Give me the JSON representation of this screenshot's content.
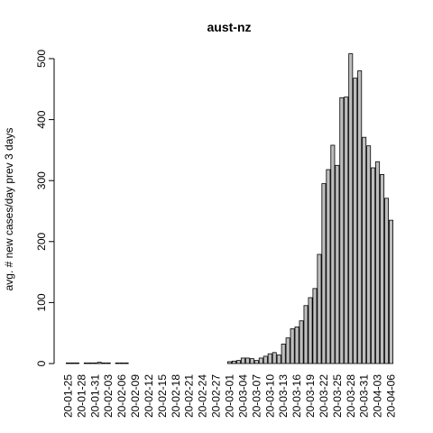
{
  "chart_data": {
    "type": "bar",
    "title": "aust-nz",
    "y_label": "avg. # new cases/day prev  3  days",
    "categories": [
      "20-01-25",
      null,
      null,
      "20-01-28",
      null,
      null,
      "20-01-31",
      null,
      null,
      "20-02-03",
      null,
      null,
      "20-02-06",
      null,
      null,
      "20-02-09",
      null,
      null,
      "20-02-12",
      null,
      null,
      "20-02-15",
      null,
      null,
      "20-02-18",
      null,
      null,
      "20-02-21",
      null,
      null,
      "20-02-24",
      null,
      null,
      "20-02-27",
      null,
      null,
      "20-03-01",
      null,
      null,
      "20-03-04",
      null,
      null,
      "20-03-07",
      null,
      null,
      "20-03-10",
      null,
      null,
      "20-03-13",
      null,
      null,
      "20-03-16",
      null,
      null,
      "20-03-19",
      null,
      null,
      "20-03-22",
      null,
      null,
      "20-03-25",
      null,
      null,
      "20-03-28",
      null,
      null,
      "20-03-31",
      null,
      null,
      "20-04-03",
      null,
      null,
      "20-04-06"
    ],
    "values": [
      1,
      1,
      1,
      0,
      1,
      1,
      1,
      2,
      1,
      1,
      0,
      1,
      1,
      1,
      0,
      0,
      0,
      0,
      0,
      0,
      0,
      0,
      0,
      0,
      0,
      0,
      0,
      0,
      0,
      0,
      0,
      0,
      0,
      0,
      0,
      0,
      3,
      4,
      5,
      9,
      9,
      8,
      5,
      9,
      12,
      16,
      18,
      14,
      32,
      42,
      57,
      60,
      70,
      95,
      108,
      123,
      179,
      295,
      318,
      358,
      325,
      436,
      437,
      508,
      468,
      480,
      371,
      357,
      321,
      331,
      310,
      271,
      235
    ],
    "color": "#bebebe",
    "ylim": [
      0,
      500
    ],
    "yticks": [
      0,
      100,
      200,
      300,
      400,
      500
    ],
    "grid": false
  }
}
